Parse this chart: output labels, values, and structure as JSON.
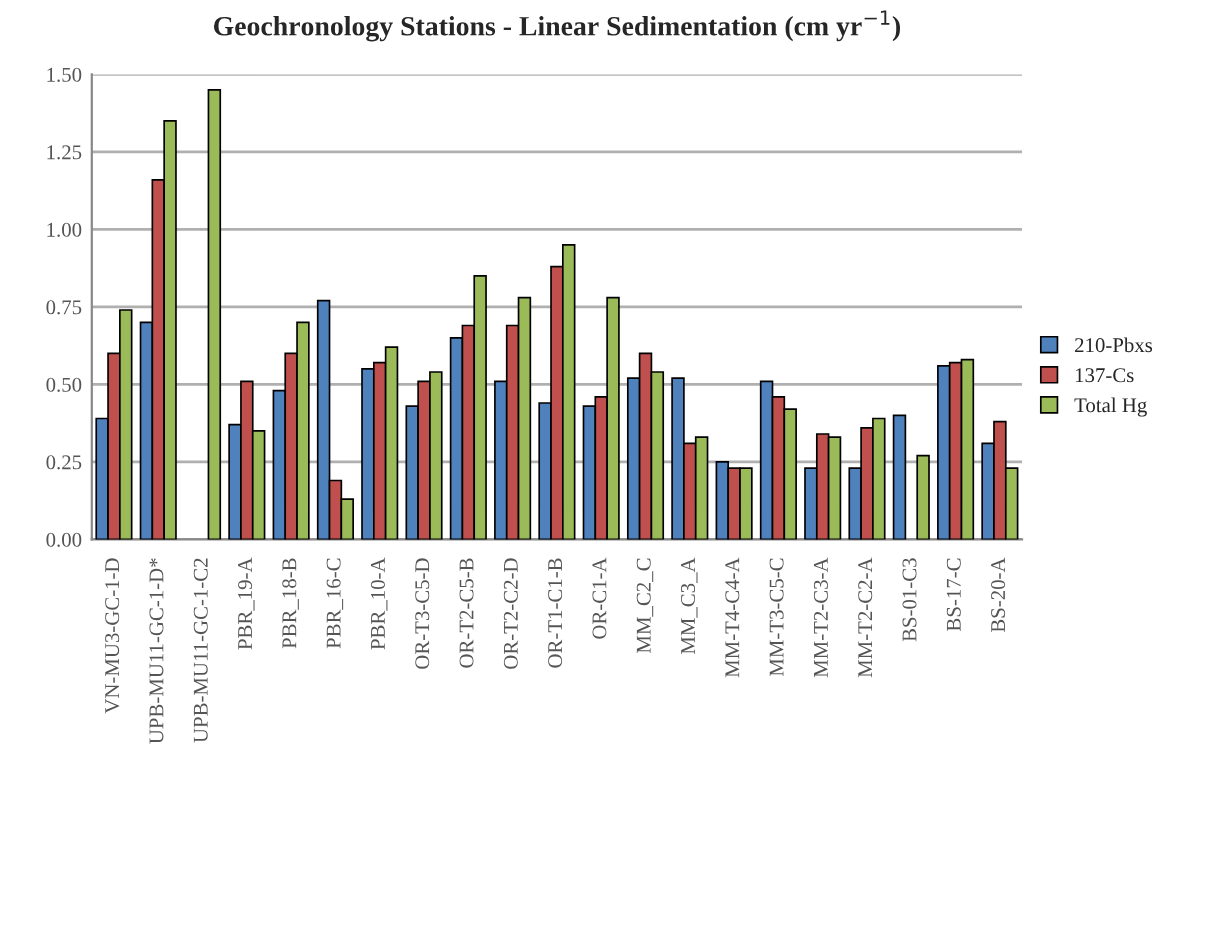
{
  "chart_data": {
    "type": "bar",
    "title": "Geochronology Stations - Linear Sedimentation (cm yr$^{−1}$)",
    "categories": [
      "VN-MU3-GC-1-D",
      "UPB-MU11-GC-1-D*",
      "UPB-MU11-GC-1-C2",
      "PBR_19-A",
      "PBR_18-B",
      "PBR_16-C",
      "PBR_10-A",
      "OR-T3-C5-D",
      "OR-T2-C5-B",
      "OR-T2-C2-D",
      "OR-T1-C1-B",
      "OR-C1-A",
      "MM_C2_C",
      "MM_C3_A",
      "MM-T4-C4-A",
      "MM-T3-C5-C",
      "MM-T2-C3-A",
      "MM-T2-C2-A",
      "BS-01-C3",
      "BS-17-C",
      "BS-20-A"
    ],
    "series": [
      {
        "name": "210-Pbxs",
        "color": "#4f81bd",
        "values": [
          0.39,
          0.7,
          null,
          0.37,
          0.48,
          0.77,
          0.55,
          0.43,
          0.65,
          0.51,
          0.44,
          0.43,
          0.52,
          0.52,
          0.25,
          0.51,
          0.23,
          0.23,
          0.4,
          0.56,
          0.31
        ]
      },
      {
        "name": "137-Cs",
        "color": "#c0504d",
        "values": [
          0.6,
          1.16,
          null,
          0.51,
          0.6,
          0.19,
          0.57,
          0.51,
          0.69,
          0.69,
          0.88,
          0.46,
          0.6,
          0.31,
          0.23,
          0.46,
          0.34,
          0.36,
          null,
          0.57,
          0.38
        ]
      },
      {
        "name": "Total Hg",
        "color": "#9bbb59",
        "values": [
          0.74,
          1.35,
          1.45,
          0.35,
          0.7,
          0.13,
          0.62,
          0.54,
          0.85,
          0.78,
          0.95,
          0.78,
          0.54,
          0.33,
          0.23,
          0.42,
          0.33,
          0.39,
          0.27,
          0.58,
          0.23
        ]
      }
    ],
    "ylim": [
      0,
      1.5
    ],
    "yticks": [
      {
        "value": 0,
        "label": "0.00"
      },
      {
        "value": 0.25,
        "label": "0.25"
      },
      {
        "value": 0.5,
        "label": "0.50"
      },
      {
        "value": 0.75,
        "label": "0.75"
      },
      {
        "value": 1.0,
        "label": "1.00"
      },
      {
        "value": 1.25,
        "label": "1.25"
      },
      {
        "value": 1.5,
        "label": "1.50"
      }
    ],
    "grid": "y",
    "legend": "right"
  }
}
